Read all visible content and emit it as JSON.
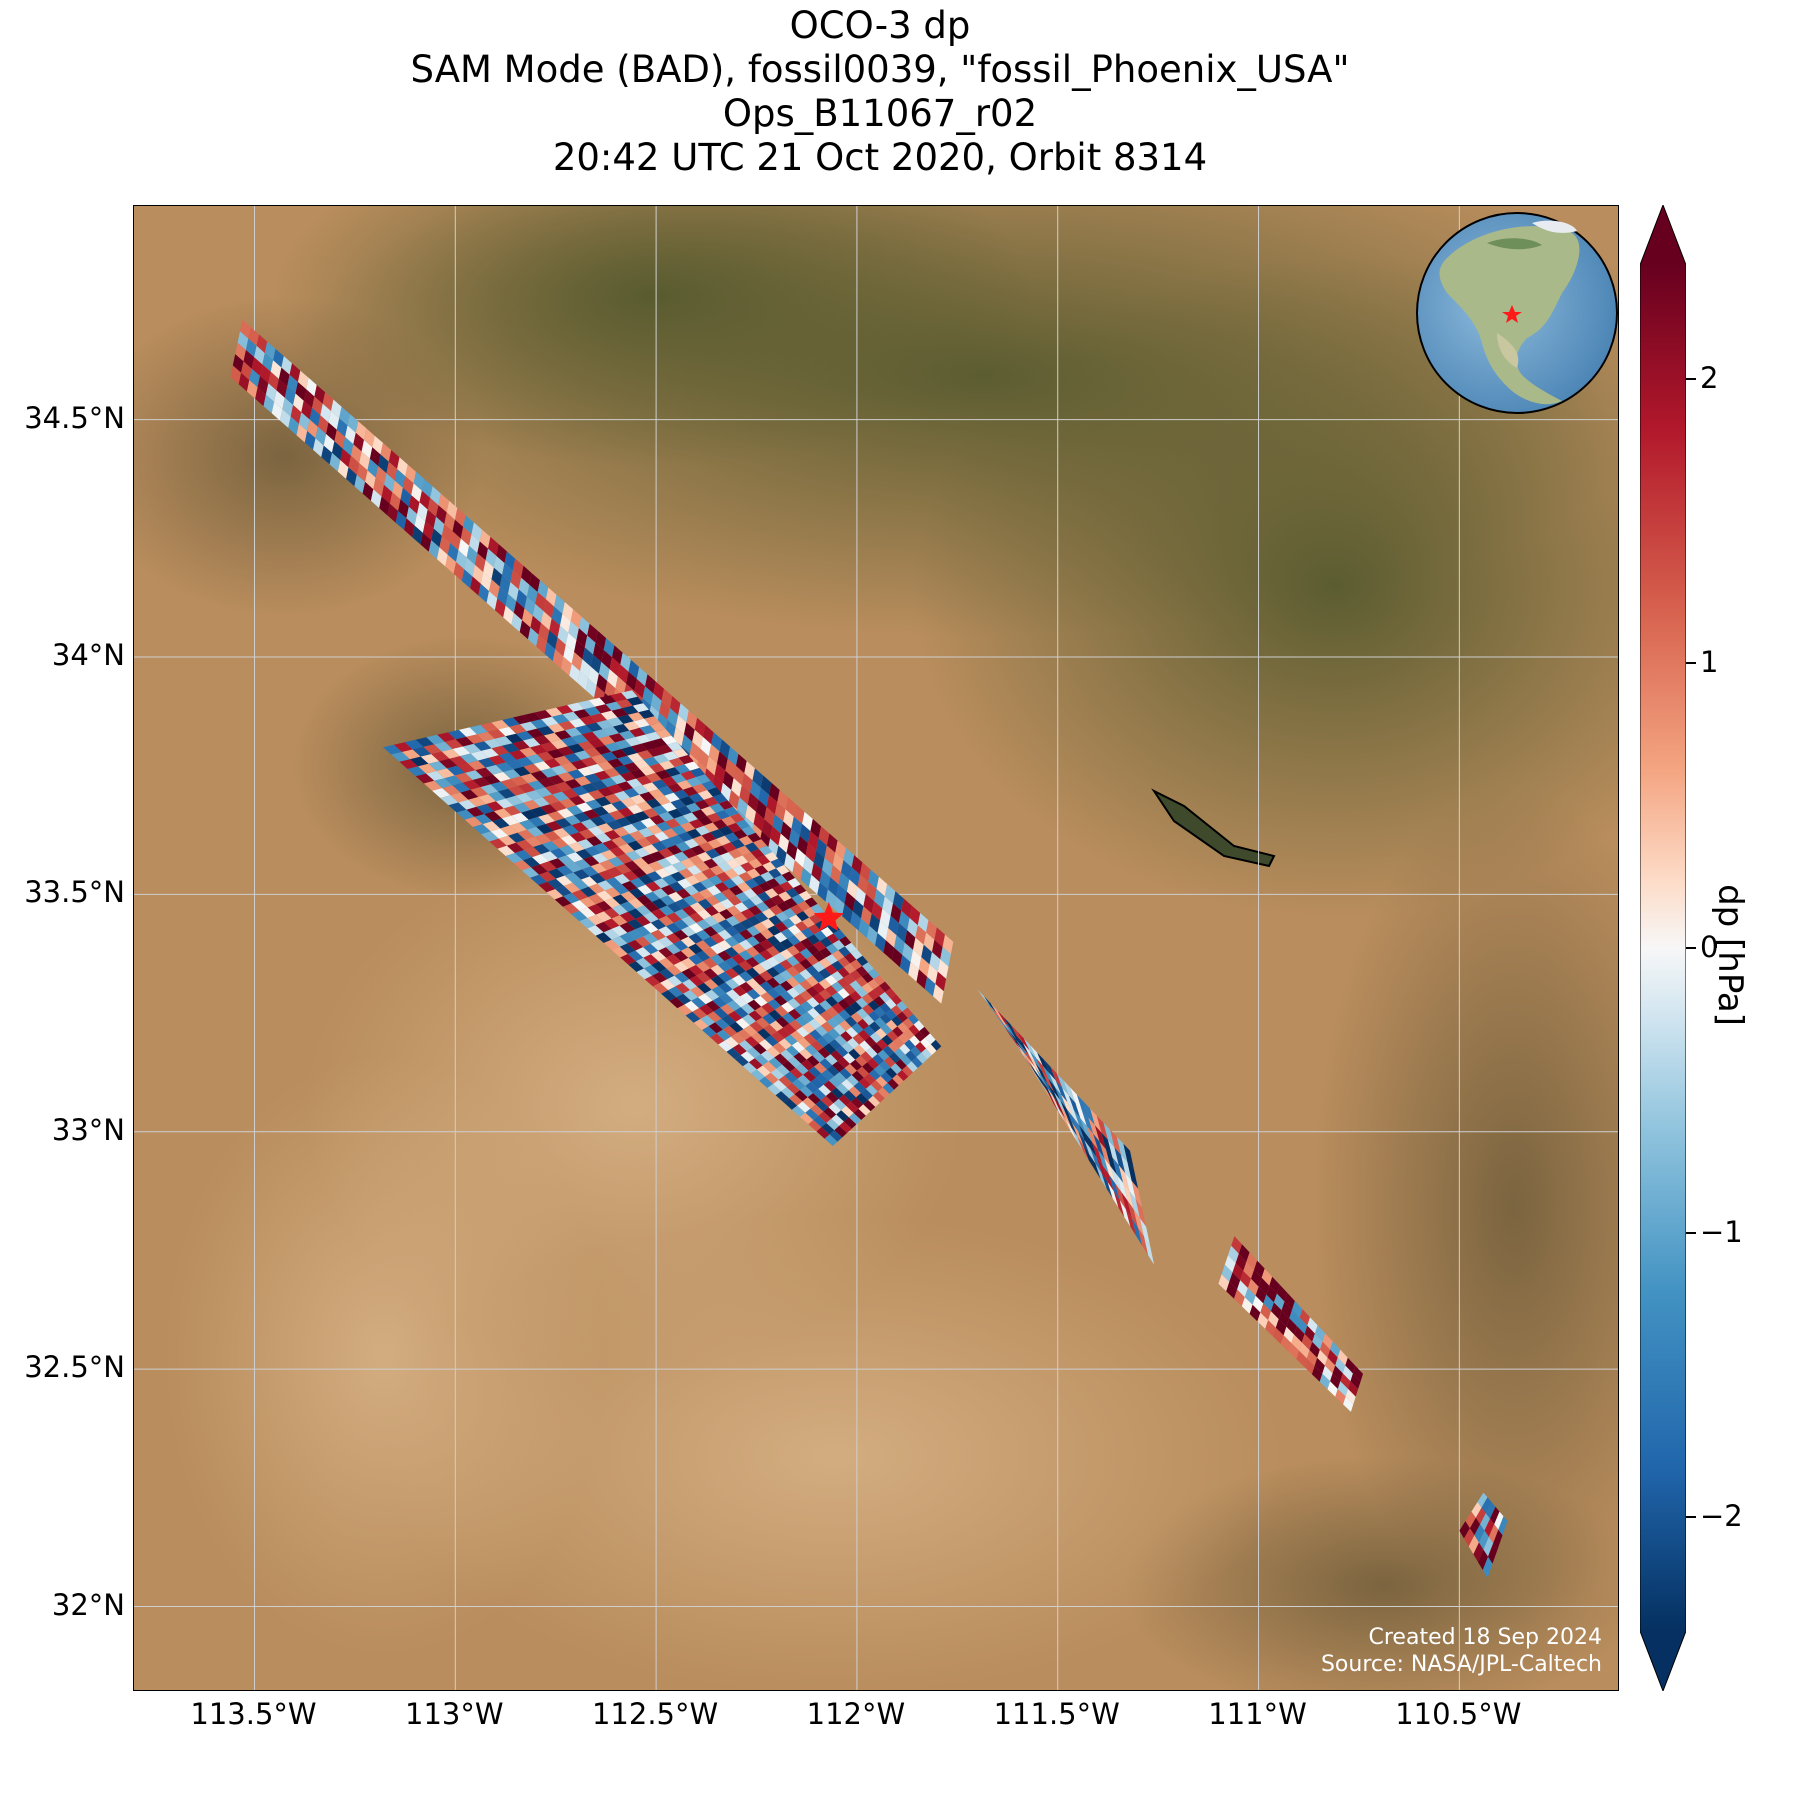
{
  "title": {
    "line1": "OCO-3 dp",
    "line2": "SAM Mode (BAD), fossil0039, \"fossil_Phoenix_USA\"",
    "line3": "Ops_B11067_r02",
    "line4": "20:42 UTC 21 Oct 2020, Orbit 8314"
  },
  "colorbar": {
    "label": "dp [hPa]",
    "min": -2.4,
    "max": 2.4,
    "extend": "both",
    "colormap": "RdBu_r",
    "ticks": [
      "2",
      "1",
      "0",
      "−1",
      "−2"
    ],
    "tick_values": [
      2,
      1,
      0,
      -1,
      -2
    ]
  },
  "credits": {
    "line1": "Created 18 Sep 2024",
    "line2": "Source: NASA/JPL-Caltech"
  },
  "axes": {
    "lat_labels": [
      "34.5°N",
      "34°N",
      "33.5°N",
      "33°N",
      "32.5°N",
      "32°N"
    ],
    "lat_values": [
      34.5,
      34.0,
      33.5,
      33.0,
      32.5,
      32.0
    ],
    "lon_labels": [
      "113.5°W",
      "113°W",
      "112.5°W",
      "112°W",
      "111.5°W",
      "111°W",
      "110.5°W"
    ],
    "lon_values": [
      -113.5,
      -113.0,
      -112.5,
      -112.0,
      -111.5,
      -111.0,
      -110.5
    ],
    "lon_range": [
      -113.8,
      -110.1
    ],
    "lat_range": [
      31.82,
      34.95
    ],
    "grid": true
  },
  "target": {
    "name": "fossil_Phoenix_USA",
    "lon": -112.07,
    "lat": 33.45,
    "marker": "red-star"
  },
  "chart_data": {
    "type": "heatmap",
    "title": "OCO-3 dp",
    "variable": "dp",
    "units": "hPa",
    "value_range": [
      -2.4,
      2.4
    ],
    "swaths": [
      {
        "corners": [
          [
            -113.53,
            34.71
          ],
          [
            -113.56,
            34.59
          ],
          [
            -111.79,
            33.27
          ],
          [
            -111.76,
            33.4
          ]
        ],
        "mean_dp": 0.3
      },
      {
        "corners": [
          [
            -112.56,
            33.93
          ],
          [
            -113.18,
            33.81
          ],
          [
            -112.06,
            32.97
          ],
          [
            -111.79,
            33.18
          ]
        ],
        "mean_dp": 0.1
      },
      {
        "corners": [
          [
            -111.7,
            33.3
          ],
          [
            -111.6,
            33.18
          ],
          [
            -111.26,
            32.72
          ],
          [
            -111.32,
            32.96
          ]
        ],
        "mean_dp": -0.5
      },
      {
        "corners": [
          [
            -111.06,
            32.78
          ],
          [
            -111.1,
            32.68
          ],
          [
            -110.77,
            32.41
          ],
          [
            -110.74,
            32.49
          ]
        ],
        "mean_dp": 1.2
      },
      {
        "corners": [
          [
            -110.44,
            32.24
          ],
          [
            -110.5,
            32.16
          ],
          [
            -110.43,
            32.06
          ],
          [
            -110.38,
            32.18
          ]
        ],
        "mean_dp": 0.8
      }
    ]
  },
  "colors": {
    "background_land": "#b58a5c",
    "highland": "#5e5a33",
    "target_marker": "#ff1a1a"
  }
}
